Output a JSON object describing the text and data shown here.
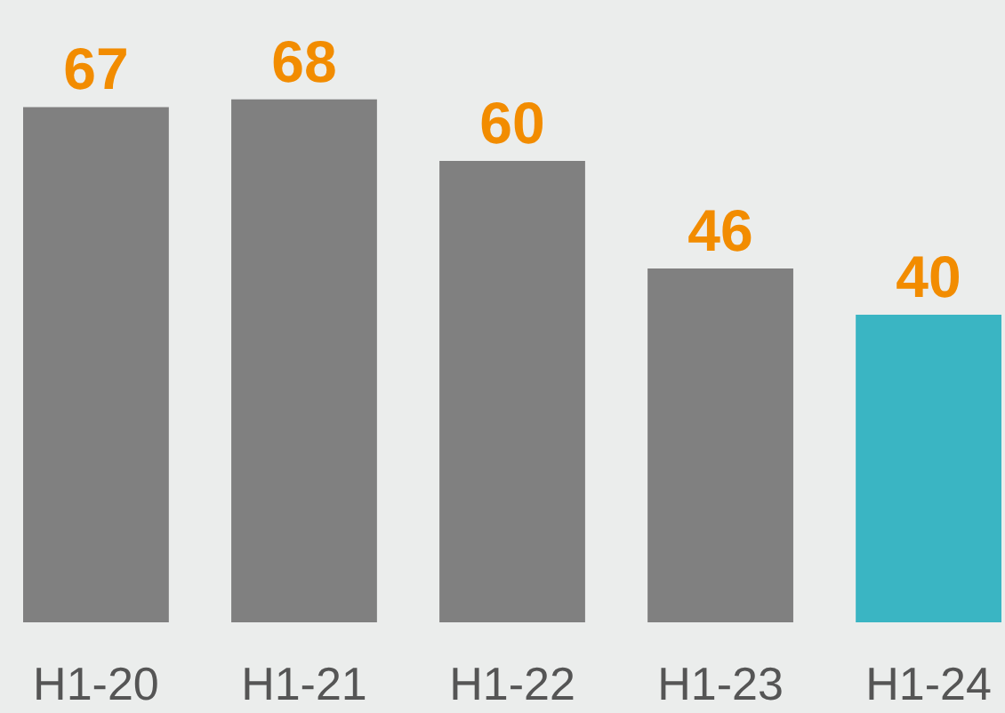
{
  "chart_data": {
    "type": "bar",
    "categories": [
      "H1-20",
      "H1-21",
      "H1-22",
      "H1-23",
      "H1-24"
    ],
    "values": [
      67,
      68,
      60,
      46,
      40
    ],
    "colors": [
      "#808080",
      "#808080",
      "#808080",
      "#808080",
      "#3ab5c3"
    ],
    "data_labels": true
  }
}
